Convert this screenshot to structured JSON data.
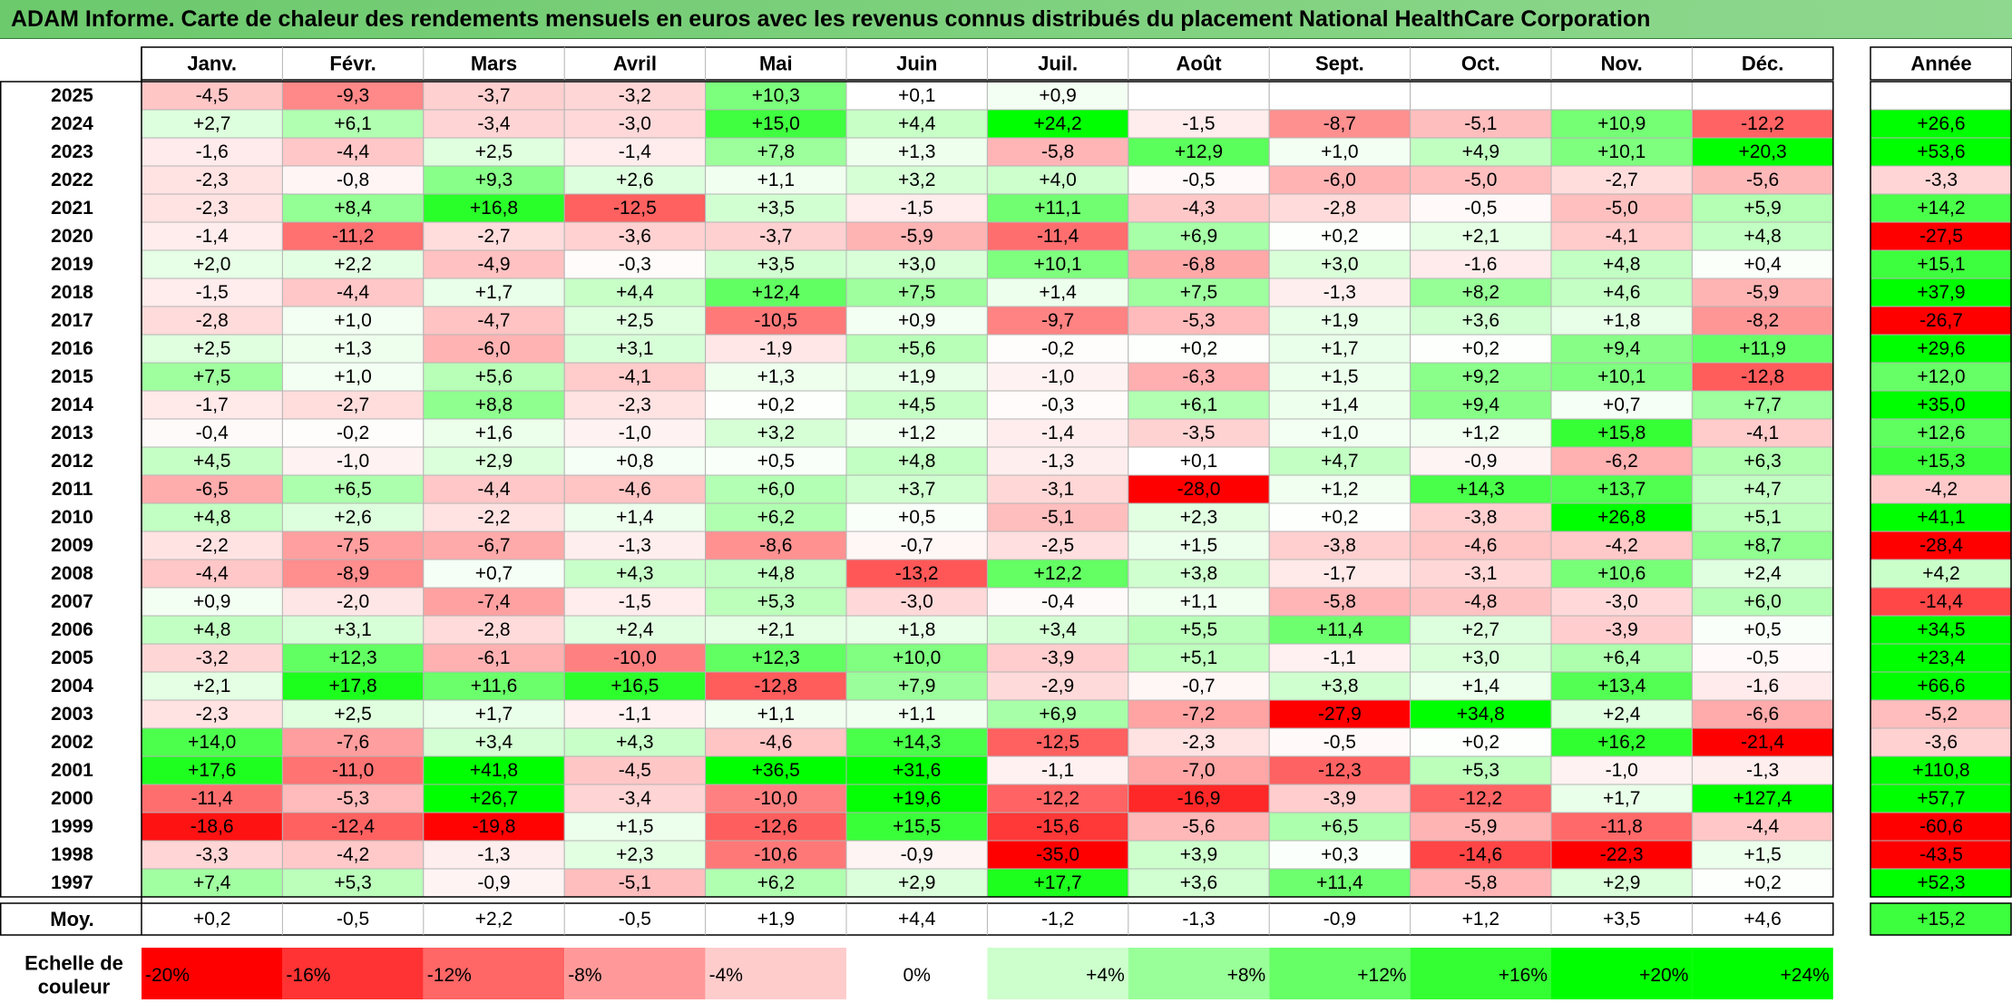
{
  "title": "ADAM Informe. Carte de chaleur des rendements mensuels en euros avec les revenus connus distribués du placement National HealthCare Corporation",
  "colors": {
    "title_start": "#6cc96c",
    "title_end": "#8fd88f",
    "grid": "#b4b4b4",
    "positive": "#00ff00",
    "negative": "#ff0000"
  },
  "chart_data": {
    "type": "heatmap",
    "months": [
      "Janv.",
      "Févr.",
      "Mars",
      "Avril",
      "Mai",
      "Juin",
      "Juil.",
      "Août",
      "Sept.",
      "Oct.",
      "Nov.",
      "Déc."
    ],
    "year_header": "Année",
    "rows": [
      {
        "year": "2025",
        "values": [
          "-4,5",
          "-9,3",
          "-3,7",
          "-3,2",
          "+10,3",
          "+0,1",
          "+0,9",
          "",
          "",
          "",
          "",
          ""
        ],
        "annual": ""
      },
      {
        "year": "2024",
        "values": [
          "+2,7",
          "+6,1",
          "-3,4",
          "-3,0",
          "+15,0",
          "+4,4",
          "+24,2",
          "-1,5",
          "-8,7",
          "-5,1",
          "+10,9",
          "-12,2"
        ],
        "annual": "+26,6"
      },
      {
        "year": "2023",
        "values": [
          "-1,6",
          "-4,4",
          "+2,5",
          "-1,4",
          "+7,8",
          "+1,3",
          "-5,8",
          "+12,9",
          "+1,0",
          "+4,9",
          "+10,1",
          "+20,3"
        ],
        "annual": "+53,6"
      },
      {
        "year": "2022",
        "values": [
          "-2,3",
          "-0,8",
          "+9,3",
          "+2,6",
          "+1,1",
          "+3,2",
          "+4,0",
          "-0,5",
          "-6,0",
          "-5,0",
          "-2,7",
          "-5,6"
        ],
        "annual": "-3,3"
      },
      {
        "year": "2021",
        "values": [
          "-2,3",
          "+8,4",
          "+16,8",
          "-12,5",
          "+3,5",
          "-1,5",
          "+11,1",
          "-4,3",
          "-2,8",
          "-0,5",
          "-5,0",
          "+5,9"
        ],
        "annual": "+14,2"
      },
      {
        "year": "2020",
        "values": [
          "-1,4",
          "-11,2",
          "-2,7",
          "-3,6",
          "-3,7",
          "-5,9",
          "-11,4",
          "+6,9",
          "+0,2",
          "+2,1",
          "-4,1",
          "+4,8"
        ],
        "annual": "-27,5"
      },
      {
        "year": "2019",
        "values": [
          "+2,0",
          "+2,2",
          "-4,9",
          "-0,3",
          "+3,5",
          "+3,0",
          "+10,1",
          "-6,8",
          "+3,0",
          "-1,6",
          "+4,8",
          "+0,4"
        ],
        "annual": "+15,1"
      },
      {
        "year": "2018",
        "values": [
          "-1,5",
          "-4,4",
          "+1,7",
          "+4,4",
          "+12,4",
          "+7,5",
          "+1,4",
          "+7,5",
          "-1,3",
          "+8,2",
          "+4,6",
          "-5,9"
        ],
        "annual": "+37,9"
      },
      {
        "year": "2017",
        "values": [
          "-2,8",
          "+1,0",
          "-4,7",
          "+2,5",
          "-10,5",
          "+0,9",
          "-9,7",
          "-5,3",
          "+1,9",
          "+3,6",
          "+1,8",
          "-8,2"
        ],
        "annual": "-26,7"
      },
      {
        "year": "2016",
        "values": [
          "+2,5",
          "+1,3",
          "-6,0",
          "+3,1",
          "-1,9",
          "+5,6",
          "-0,2",
          "+0,2",
          "+1,7",
          "+0,2",
          "+9,4",
          "+11,9"
        ],
        "annual": "+29,6"
      },
      {
        "year": "2015",
        "values": [
          "+7,5",
          "+1,0",
          "+5,6",
          "-4,1",
          "+1,3",
          "+1,9",
          "-1,0",
          "-6,3",
          "+1,5",
          "+9,2",
          "+10,1",
          "-12,8"
        ],
        "annual": "+12,0"
      },
      {
        "year": "2014",
        "values": [
          "-1,7",
          "-2,7",
          "+8,8",
          "-2,3",
          "+0,2",
          "+4,5",
          "-0,3",
          "+6,1",
          "+1,4",
          "+9,4",
          "+0,7",
          "+7,7"
        ],
        "annual": "+35,0"
      },
      {
        "year": "2013",
        "values": [
          "-0,4",
          "-0,2",
          "+1,6",
          "-1,0",
          "+3,2",
          "+1,2",
          "-1,4",
          "-3,5",
          "+1,0",
          "+1,2",
          "+15,8",
          "-4,1"
        ],
        "annual": "+12,6"
      },
      {
        "year": "2012",
        "values": [
          "+4,5",
          "-1,0",
          "+2,9",
          "+0,8",
          "+0,5",
          "+4,8",
          "-1,3",
          "+0,1",
          "+4,7",
          "-0,9",
          "-6,2",
          "+6,3"
        ],
        "annual": "+15,3"
      },
      {
        "year": "2011",
        "values": [
          "-6,5",
          "+6,5",
          "-4,4",
          "-4,6",
          "+6,0",
          "+3,7",
          "-3,1",
          "-28,0",
          "+1,2",
          "+14,3",
          "+13,7",
          "+4,7"
        ],
        "annual": "-4,2"
      },
      {
        "year": "2010",
        "values": [
          "+4,8",
          "+2,6",
          "-2,2",
          "+1,4",
          "+6,2",
          "+0,5",
          "-5,1",
          "+2,3",
          "+0,2",
          "-3,8",
          "+26,8",
          "+5,1"
        ],
        "annual": "+41,1"
      },
      {
        "year": "2009",
        "values": [
          "-2,2",
          "-7,5",
          "-6,7",
          "-1,3",
          "-8,6",
          "-0,7",
          "-2,5",
          "+1,5",
          "-3,8",
          "-4,6",
          "-4,2",
          "+8,7"
        ],
        "annual": "-28,4"
      },
      {
        "year": "2008",
        "values": [
          "-4,4",
          "-8,9",
          "+0,7",
          "+4,3",
          "+4,8",
          "-13,2",
          "+12,2",
          "+3,8",
          "-1,7",
          "-3,1",
          "+10,6",
          "+2,4"
        ],
        "annual": "+4,2"
      },
      {
        "year": "2007",
        "values": [
          "+0,9",
          "-2,0",
          "-7,4",
          "-1,5",
          "+5,3",
          "-3,0",
          "-0,4",
          "+1,1",
          "-5,8",
          "-4,8",
          "-3,0",
          "+6,0"
        ],
        "annual": "-14,4"
      },
      {
        "year": "2006",
        "values": [
          "+4,8",
          "+3,1",
          "-2,8",
          "+2,4",
          "+2,1",
          "+1,8",
          "+3,4",
          "+5,5",
          "+11,4",
          "+2,7",
          "-3,9",
          "+0,5"
        ],
        "annual": "+34,5"
      },
      {
        "year": "2005",
        "values": [
          "-3,2",
          "+12,3",
          "-6,1",
          "-10,0",
          "+12,3",
          "+10,0",
          "-3,9",
          "+5,1",
          "-1,1",
          "+3,0",
          "+6,4",
          "-0,5"
        ],
        "annual": "+23,4"
      },
      {
        "year": "2004",
        "values": [
          "+2,1",
          "+17,8",
          "+11,6",
          "+16,5",
          "-12,8",
          "+7,9",
          "-2,9",
          "-0,7",
          "+3,8",
          "+1,4",
          "+13,4",
          "-1,6"
        ],
        "annual": "+66,6"
      },
      {
        "year": "2003",
        "values": [
          "-2,3",
          "+2,5",
          "+1,7",
          "-1,1",
          "+1,1",
          "+1,1",
          "+6,9",
          "-7,2",
          "-27,9",
          "+34,8",
          "+2,4",
          "-6,6"
        ],
        "annual": "-5,2"
      },
      {
        "year": "2002",
        "values": [
          "+14,0",
          "-7,6",
          "+3,4",
          "+4,3",
          "-4,6",
          "+14,3",
          "-12,5",
          "-2,3",
          "-0,5",
          "+0,2",
          "+16,2",
          "-21,4"
        ],
        "annual": "-3,6"
      },
      {
        "year": "2001",
        "values": [
          "+17,6",
          "-11,0",
          "+41,8",
          "-4,5",
          "+36,5",
          "+31,6",
          "-1,1",
          "-7,0",
          "-12,3",
          "+5,3",
          "-1,0",
          "-1,3"
        ],
        "annual": "+110,8"
      },
      {
        "year": "2000",
        "values": [
          "-11,4",
          "-5,3",
          "+26,7",
          "-3,4",
          "-10,0",
          "+19,6",
          "-12,2",
          "-16,9",
          "-3,9",
          "-12,2",
          "+1,7",
          "+127,4"
        ],
        "annual": "+57,7"
      },
      {
        "year": "1999",
        "values": [
          "-18,6",
          "-12,4",
          "-19,8",
          "+1,5",
          "-12,6",
          "+15,5",
          "-15,6",
          "-5,6",
          "+6,5",
          "-5,9",
          "-11,8",
          "-4,4"
        ],
        "annual": "-60,6"
      },
      {
        "year": "1998",
        "values": [
          "-3,3",
          "-4,2",
          "-1,3",
          "+2,3",
          "-10,6",
          "-0,9",
          "-35,0",
          "+3,9",
          "+0,3",
          "-14,6",
          "-22,3",
          "+1,5"
        ],
        "annual": "-43,5"
      },
      {
        "year": "1997",
        "values": [
          "+7,4",
          "+5,3",
          "-0,9",
          "-5,1",
          "+6,2",
          "+2,9",
          "+17,7",
          "+3,6",
          "+11,4",
          "-5,8",
          "+2,9",
          "+0,2"
        ],
        "annual": "+52,3"
      }
    ],
    "average": {
      "label": "Moy.",
      "values": [
        "+0,2",
        "-0,5",
        "+2,2",
        "-0,5",
        "+1,9",
        "+4,4",
        "-1,2",
        "-1,3",
        "-0,9",
        "+1,2",
        "+3,5",
        "+4,6"
      ],
      "annual": "+15,2"
    },
    "scale": {
      "label_line1": "Echelle de",
      "label_line2": "couleur",
      "steps": [
        "-20%",
        "-16%",
        "-12%",
        "-8%",
        "-4%",
        "0%",
        "+4%",
        "+8%",
        "+12%",
        "+16%",
        "+20%",
        "+24%"
      ],
      "step_values": [
        -20,
        -16,
        -12,
        -8,
        -4,
        0,
        4,
        8,
        12,
        16,
        20,
        24
      ]
    }
  }
}
